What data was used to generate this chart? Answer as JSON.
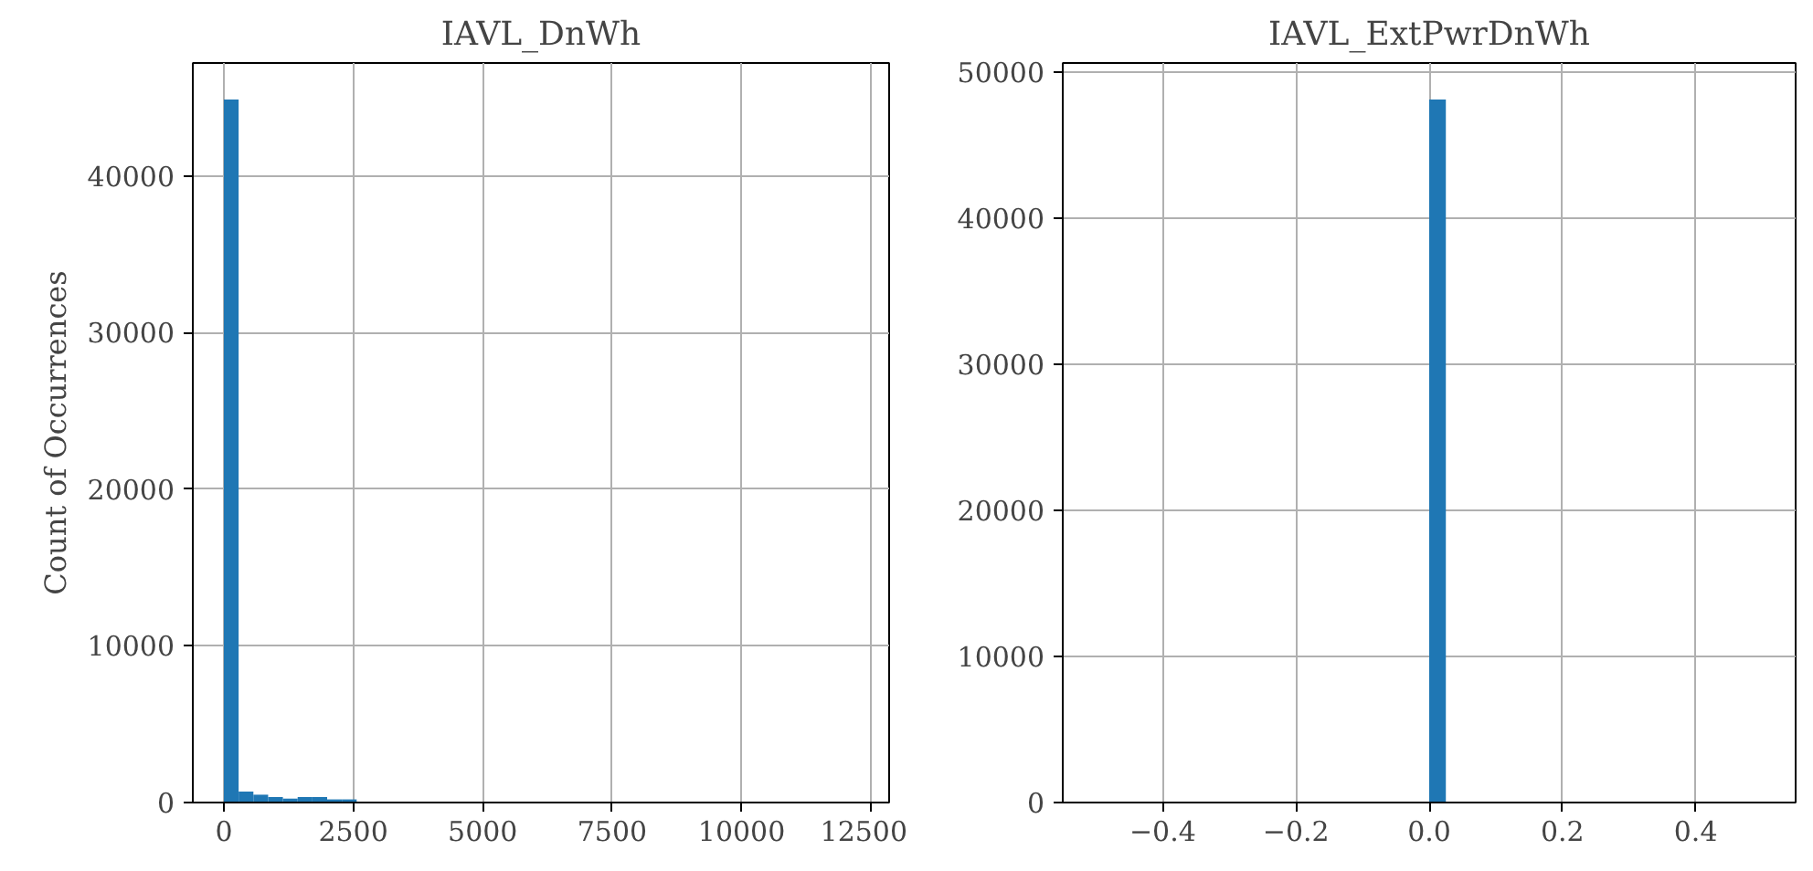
{
  "chart_data": [
    {
      "type": "histogram",
      "title": "IAVL_DnWh",
      "ylabel": "Count of Occurrences",
      "color": "#1f77b4",
      "grid": true,
      "bins": [
        0,
        285,
        570,
        855,
        1140,
        1425,
        1710,
        1995,
        2280,
        2565,
        2850,
        3135,
        3420,
        3705,
        3990,
        4275,
        4560,
        4845,
        5130,
        5415,
        5700,
        5985,
        6270,
        6555,
        6840,
        7125,
        7410,
        7695,
        7980,
        8265,
        8550,
        8835,
        9120,
        9405,
        9690,
        9975,
        10260,
        10545,
        10830,
        11115,
        11400,
        11685,
        11970,
        12255
      ],
      "values": [
        44900,
        700,
        500,
        350,
        250,
        350,
        350,
        200,
        200,
        0,
        0,
        0,
        0,
        0,
        0,
        0,
        0,
        0,
        0,
        0,
        0,
        0,
        0,
        0,
        0,
        0,
        0,
        0,
        0,
        0,
        0,
        0,
        0,
        0,
        0,
        0,
        0,
        0,
        0,
        0,
        0,
        0,
        0
      ],
      "xlim": [
        -600,
        12850
      ],
      "xticks": [
        0,
        2500,
        5000,
        7500,
        10000,
        12500
      ],
      "ylim": [
        0,
        47230
      ],
      "yticks": [
        0,
        10000,
        20000,
        30000,
        40000
      ]
    },
    {
      "type": "histogram",
      "title": "IAVL_ExtPwrDnWh",
      "color": "#1f77b4",
      "grid": true,
      "bins": [
        -0.5,
        -0.475,
        -0.45,
        -0.425,
        -0.4,
        -0.375,
        -0.35,
        -0.325,
        -0.3,
        -0.275,
        -0.25,
        -0.225,
        -0.2,
        -0.175,
        -0.15,
        -0.125,
        -0.1,
        -0.075,
        -0.05,
        -0.025,
        0,
        0.025,
        0.05,
        0.075,
        0.1,
        0.125,
        0.15,
        0.175,
        0.2,
        0.225,
        0.25,
        0.275,
        0.3,
        0.325,
        0.35,
        0.375,
        0.4,
        0.425,
        0.45,
        0.475,
        0.5
      ],
      "values": [
        0,
        0,
        0,
        0,
        0,
        0,
        0,
        0,
        0,
        0,
        0,
        0,
        0,
        0,
        0,
        0,
        0,
        0,
        0,
        0,
        48100,
        0,
        0,
        0,
        0,
        0,
        0,
        0,
        0,
        0,
        0,
        0,
        0,
        0,
        0,
        0,
        0,
        0,
        0,
        0
      ],
      "xlim": [
        -0.55,
        0.55
      ],
      "xticks": [
        {
          "value": -0.4,
          "label": "−0.4"
        },
        {
          "value": -0.2,
          "label": "−0.2"
        },
        {
          "value": 0.0,
          "label": "0.0"
        },
        {
          "value": 0.2,
          "label": "0.2"
        },
        {
          "value": 0.4,
          "label": "0.4"
        }
      ],
      "ylim": [
        0,
        50600
      ],
      "yticks": [
        0,
        10000,
        20000,
        30000,
        40000,
        50000
      ]
    }
  ]
}
